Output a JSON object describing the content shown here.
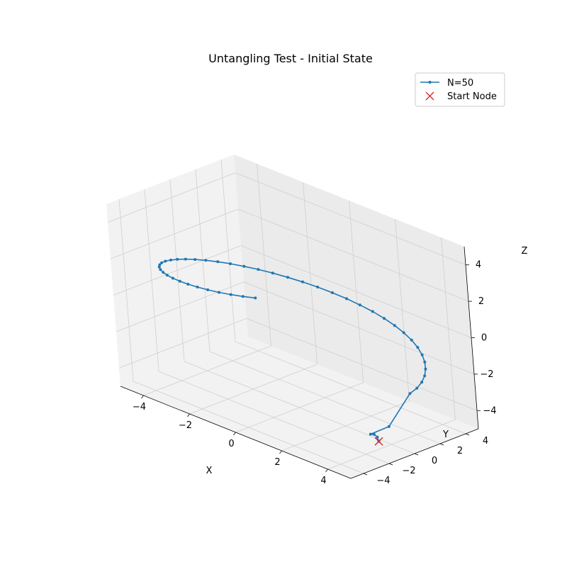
{
  "chart_data": {
    "type": "line3d",
    "title": "Untangling Test - Initial State",
    "xlabel": "X",
    "ylabel": "Y",
    "zlabel": "Z",
    "xlim": [
      -5,
      5
    ],
    "ylim": [
      -5,
      5
    ],
    "zlim": [
      -5,
      5
    ],
    "x_ticks": [
      "−4",
      "−2",
      "0",
      "2",
      "4"
    ],
    "y_ticks": [
      "−4",
      "−2",
      "0",
      "2",
      "4"
    ],
    "z_ticks": [
      "−4",
      "−2",
      "0",
      "2",
      "4"
    ],
    "grid": true,
    "legend_position": "top-right",
    "series": [
      {
        "name": "N=50",
        "color": "#1f77b4",
        "marker": "dot",
        "x": [
          4.54,
          4.53,
          4.47,
          4.33,
          4.56,
          5.0,
          4.96,
          4.84,
          4.65,
          4.4,
          4.1,
          3.75,
          3.35,
          2.92,
          2.45,
          1.96,
          1.45,
          0.93,
          0.4,
          -0.13,
          -0.66,
          -1.18,
          -1.68,
          -2.15,
          -2.6,
          -3.01,
          -3.38,
          -3.71,
          -3.99,
          -4.22,
          -4.39,
          -4.51,
          -4.57,
          -4.57,
          -4.52,
          -4.41,
          -4.24,
          -4.02,
          -3.75,
          -3.44,
          -3.09,
          -2.7,
          -2.28,
          -1.84,
          -1.38,
          -0.9,
          -0.42,
          0.06,
          0.53,
          0.98
        ],
        "y": [
          -1.87,
          -1.94,
          -2.07,
          -2.1,
          -1.04,
          0.0,
          0.63,
          1.24,
          1.82,
          2.35,
          2.84,
          3.28,
          3.66,
          3.97,
          4.22,
          4.4,
          4.51,
          4.56,
          4.53,
          4.45,
          4.3,
          4.1,
          3.84,
          3.53,
          3.18,
          2.79,
          2.36,
          1.9,
          1.42,
          0.91,
          0.39,
          -0.13,
          -0.65,
          -1.16,
          -1.66,
          -2.14,
          -2.59,
          -3.01,
          -3.39,
          -3.73,
          -4.03,
          -4.28,
          -4.48,
          -4.62,
          -4.71,
          -4.75,
          -4.73,
          -4.66,
          -4.54,
          -4.37
        ],
        "z": [
          -4.05,
          -3.8,
          -3.65,
          -3.7,
          -3.45,
          -1.7,
          -1.6,
          -1.5,
          -1.4,
          -1.3,
          -1.2,
          -1.1,
          -1.0,
          -0.9,
          -0.8,
          -0.7,
          -0.6,
          -0.5,
          -0.4,
          -0.3,
          -0.2,
          -0.1,
          0.0,
          0.1,
          0.2,
          0.3,
          0.4,
          0.5,
          0.6,
          0.7,
          0.8,
          0.9,
          1.0,
          1.1,
          1.2,
          1.3,
          1.4,
          1.5,
          1.6,
          1.7,
          1.8,
          1.9,
          2.0,
          2.1,
          2.2,
          2.3,
          2.4,
          2.5,
          2.6,
          2.7
        ]
      },
      {
        "name": "Start Node",
        "color": "#d62728",
        "marker": "x",
        "x": [
          4.54
        ],
        "y": [
          -1.87
        ],
        "z": [
          -4.05
        ]
      }
    ]
  }
}
